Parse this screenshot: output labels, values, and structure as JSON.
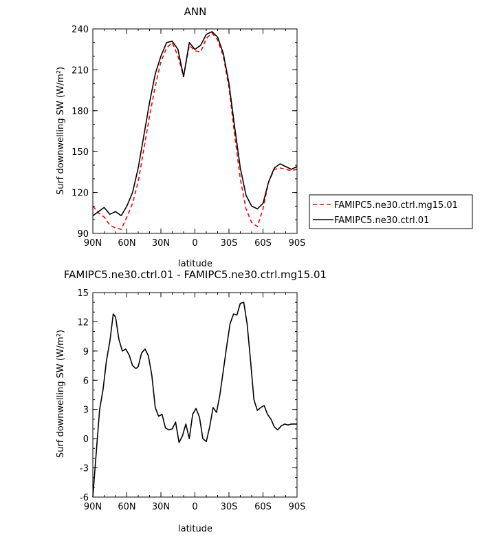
{
  "chart_data": [
    {
      "type": "line",
      "title": "ANN",
      "xlabel": "latitude",
      "ylabel": "Surf downwelling SW (W/m²)",
      "xlim": [
        90,
        -90
      ],
      "ylim": [
        90,
        240
      ],
      "x_ticks": [
        90,
        60,
        30,
        0,
        -30,
        -60,
        -90
      ],
      "x_tick_labels": [
        "90N",
        "60N",
        "30N",
        "0",
        "30S",
        "60S",
        "90S"
      ],
      "y_ticks": [
        90,
        120,
        150,
        180,
        210,
        240
      ],
      "y_tick_labels": [
        "90",
        "120",
        "150",
        "180",
        "210",
        "240"
      ],
      "legend_position": "right",
      "series": [
        {
          "name": "FAMIPC5.ne30.ctrl.mg15.01",
          "color": "#ff0000",
          "style": "dashed",
          "x": [
            90,
            85,
            80,
            75,
            70,
            65,
            60,
            55,
            50,
            45,
            40,
            35,
            30,
            25,
            20,
            15,
            10,
            5,
            0,
            -5,
            -10,
            -15,
            -20,
            -25,
            -30,
            -35,
            -40,
            -45,
            -50,
            -55,
            -60,
            -65,
            -70,
            -75,
            -80,
            -85,
            -90
          ],
          "values": [
            110,
            105,
            102,
            96,
            94,
            93,
            102,
            112,
            128,
            152,
            176,
            198,
            216,
            226,
            230,
            220,
            205,
            228,
            224,
            223,
            233,
            237,
            232,
            220,
            197,
            162,
            130,
            108,
            98,
            95,
            108,
            128,
            137,
            138,
            137,
            136,
            137
          ]
        },
        {
          "name": "FAMIPC5.ne30.ctrl.01",
          "color": "#000000",
          "style": "solid",
          "x": [
            90,
            85,
            80,
            75,
            70,
            65,
            60,
            55,
            50,
            45,
            40,
            35,
            30,
            25,
            20,
            15,
            10,
            5,
            0,
            -5,
            -10,
            -15,
            -20,
            -25,
            -30,
            -35,
            -40,
            -45,
            -50,
            -55,
            -60,
            -65,
            -70,
            -75,
            -80,
            -85,
            -90
          ],
          "values": [
            103,
            106,
            109,
            104,
            106,
            103,
            110,
            120,
            138,
            162,
            186,
            207,
            220,
            230,
            231,
            225,
            205,
            230,
            225,
            228,
            236,
            238,
            234,
            222,
            200,
            168,
            138,
            118,
            110,
            108,
            112,
            128,
            138,
            141,
            139,
            137,
            139
          ]
        }
      ]
    },
    {
      "type": "line",
      "title": "FAMIPC5.ne30.ctrl.01 - FAMIPC5.ne30.ctrl.mg15.01",
      "xlabel": "latitude",
      "ylabel": "Surf downwelling SW (W/m²)",
      "xlim": [
        90,
        -90
      ],
      "ylim": [
        -6,
        15
      ],
      "x_ticks": [
        90,
        60,
        30,
        0,
        -30,
        -60,
        -90
      ],
      "x_tick_labels": [
        "90N",
        "60N",
        "30N",
        "0",
        "30S",
        "60S",
        "90S"
      ],
      "y_ticks": [
        -6,
        -3,
        0,
        3,
        6,
        9,
        12,
        15
      ],
      "y_tick_labels": [
        "-6",
        "-3",
        "0",
        "3",
        "6",
        "9",
        "12",
        "15"
      ],
      "series": [
        {
          "color": "#000000",
          "style": "solid",
          "x": [
            90,
            87,
            84,
            81,
            78,
            75,
            72,
            70,
            67,
            64,
            61,
            58,
            55,
            52,
            50,
            47,
            44,
            41,
            38,
            35,
            32,
            29,
            26,
            23,
            20,
            17,
            14,
            11,
            8,
            5,
            2,
            -1,
            -4,
            -7,
            -10,
            -13,
            -16,
            -19,
            -22,
            -25,
            -28,
            -31,
            -34,
            -37,
            -40,
            -43,
            -46,
            -49,
            -52,
            -55,
            -58,
            -61,
            -64,
            -67,
            -70,
            -73,
            -76,
            -79,
            -82,
            -85,
            -88,
            -90
          ],
          "values": [
            -6,
            -1.5,
            3,
            5,
            8,
            10,
            12.8,
            12.5,
            10.2,
            9,
            9.2,
            8.6,
            7.5,
            7.2,
            7.4,
            8.8,
            9.2,
            8.5,
            6.5,
            3.2,
            2.3,
            2.5,
            1.1,
            0.9,
            1.0,
            1.7,
            -0.4,
            0.3,
            1.5,
            0.0,
            2.5,
            3.1,
            2.2,
            0.0,
            -0.3,
            1.2,
            3.2,
            2.7,
            4.5,
            7,
            9.5,
            11.8,
            12.8,
            12.7,
            13.9,
            14.0,
            11.8,
            8,
            4,
            2.9,
            3.2,
            3.4,
            2.5,
            2.0,
            1.2,
            0.9,
            1.3,
            1.5,
            1.4,
            1.5,
            1.5,
            1.5
          ]
        }
      ]
    }
  ]
}
